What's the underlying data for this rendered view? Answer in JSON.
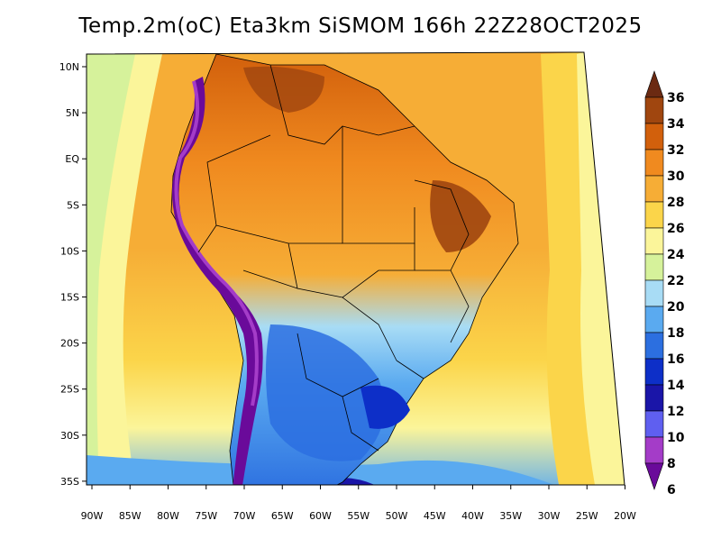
{
  "title": "Temp.2m(oC) Eta3km SiSMOM 166h 22Z28OCT2025",
  "lat_labels": [
    "10N",
    "5N",
    "EQ",
    "5S",
    "10S",
    "15S",
    "20S",
    "25S",
    "30S",
    "35S"
  ],
  "lon_labels": [
    "90W",
    "85W",
    "80W",
    "75W",
    "70W",
    "65W",
    "60W",
    "55W",
    "50W",
    "45W",
    "40W",
    "35W",
    "30W",
    "25W",
    "20W"
  ],
  "colorbar": {
    "labels": [
      "36",
      "34",
      "32",
      "30",
      "28",
      "26",
      "24",
      "22",
      "20",
      "18",
      "16",
      "14",
      "12",
      "10",
      "8",
      "6"
    ],
    "colors": [
      "#6b2a12",
      "#a0460f",
      "#d2600c",
      "#f08a1f",
      "#f6ad36",
      "#fbd54a",
      "#fbf59a",
      "#d6f29b",
      "#a8dcf5",
      "#5aaaf0",
      "#2c6fe0",
      "#0d2fc8",
      "#1a15a8",
      "#5f5ff0",
      "#a43cc8",
      "#6a0a9a"
    ]
  },
  "legend_colors": {
    "ocean_warm": "#f6ad36",
    "ocean_mid": "#fbd54a",
    "ocean_cool": "#fbf59a",
    "land_hot": "#d2600c",
    "land_cold": "#2c6fe0",
    "andes": "#6a0a9a"
  }
}
